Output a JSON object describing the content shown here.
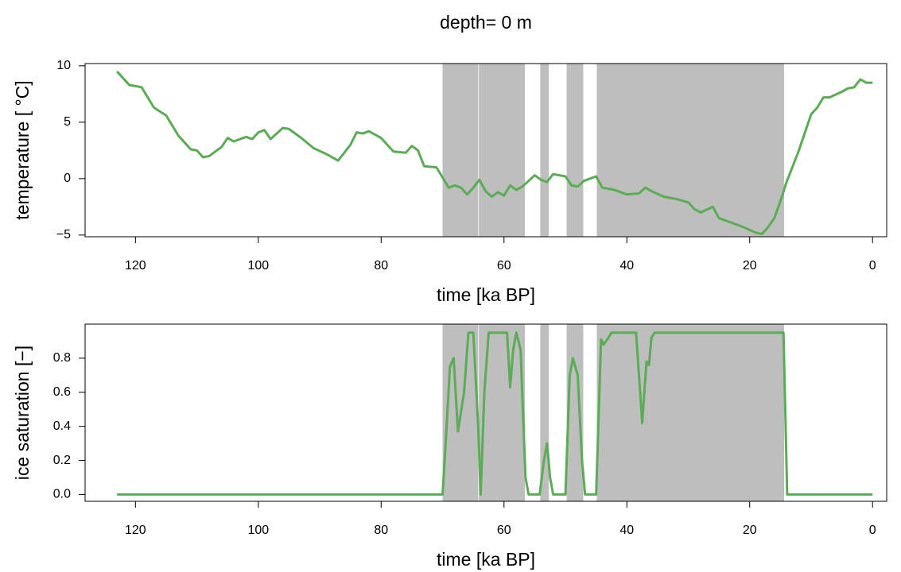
{
  "chart_data": [
    {
      "type": "line",
      "title": "depth= 0 m",
      "xlabel": "time [ka BP]",
      "ylabel": "temperature [ °C]",
      "color": "#5aac55",
      "shade_color": "#bebebe",
      "shading": [
        [
          70,
          64.2
        ],
        [
          64.1,
          56.6
        ],
        [
          54.1,
          52.7
        ],
        [
          49.8,
          47.1
        ],
        [
          44.9,
          14.4
        ]
      ],
      "xlim": [
        128.2,
        -2.3
      ],
      "xticks": [
        120,
        100,
        80,
        60,
        40,
        20,
        0
      ],
      "ylim": [
        -5.15,
        10.2
      ],
      "yticks": [
        {
          "value": -5,
          "label": "−5"
        },
        0,
        5,
        10
      ],
      "x": [
        123,
        121,
        119,
        117,
        115,
        113,
        111,
        110,
        109,
        108,
        106,
        105,
        104,
        102,
        101,
        100,
        99,
        98,
        96,
        95,
        93,
        91,
        89,
        87,
        85,
        84,
        83,
        82,
        80,
        78,
        76,
        75,
        74,
        73,
        71,
        70,
        69,
        68,
        67,
        66,
        65,
        64,
        63,
        62,
        61,
        60,
        59,
        58,
        57,
        56,
        55,
        54,
        53,
        52,
        50,
        49,
        48,
        47,
        45,
        44,
        42,
        40,
        38,
        37,
        36,
        34,
        32,
        30,
        29,
        28,
        26,
        25,
        23,
        21,
        19,
        18,
        17,
        16,
        15,
        14,
        12,
        10,
        9,
        8,
        7,
        5,
        4,
        3,
        2,
        1,
        0
      ],
      "values": [
        9.5,
        8.3,
        8.1,
        6.3,
        5.6,
        3.8,
        2.6,
        2.5,
        1.9,
        2.0,
        2.8,
        3.6,
        3.3,
        3.7,
        3.5,
        4.1,
        4.3,
        3.5,
        4.5,
        4.4,
        3.6,
        2.7,
        2.2,
        1.6,
        3.0,
        4.1,
        4.0,
        4.2,
        3.6,
        2.4,
        2.3,
        2.9,
        2.5,
        1.1,
        1.0,
        0.1,
        -0.8,
        -0.6,
        -0.8,
        -1.4,
        -0.8,
        -0.1,
        -1.1,
        -1.6,
        -1.2,
        -1.5,
        -0.6,
        -1.0,
        -0.7,
        -0.2,
        0.3,
        -0.1,
        -0.3,
        0.4,
        0.2,
        -0.6,
        -0.7,
        -0.2,
        0.2,
        -0.8,
        -1.0,
        -1.4,
        -1.3,
        -0.8,
        -1.1,
        -1.6,
        -1.8,
        -2.1,
        -2.7,
        -3.0,
        -2.5,
        -3.5,
        -3.9,
        -4.3,
        -4.8,
        -4.9,
        -4.3,
        -3.5,
        -2.0,
        -0.3,
        2.5,
        5.7,
        6.3,
        7.2,
        7.2,
        7.7,
        8.0,
        8.1,
        8.8,
        8.5,
        8.5
      ]
    },
    {
      "type": "line",
      "xlabel": "time [ka BP]",
      "ylabel": "ice saturation [−]",
      "color": "#5aac55",
      "shade_color": "#bebebe",
      "shading": [
        [
          70,
          64.2
        ],
        [
          64.1,
          56.6
        ],
        [
          54.1,
          52.7
        ],
        [
          49.8,
          47.1
        ],
        [
          44.9,
          14.4
        ]
      ],
      "xlim": [
        128.2,
        -2.3
      ],
      "xticks": [
        120,
        100,
        80,
        60,
        40,
        20,
        0
      ],
      "ylim": [
        -0.04,
        1.0
      ],
      "yticks": [
        {
          "value": 0,
          "label": "0.0"
        },
        0.2,
        0.4,
        0.6,
        0.8
      ],
      "x": [
        123,
        70,
        69.5,
        68.8,
        68.2,
        67.5,
        66.5,
        65.8,
        65,
        64.2,
        63.8,
        63.2,
        62.5,
        59.5,
        59,
        58.5,
        58,
        57.3,
        56.5,
        56,
        54.2,
        53.5,
        53,
        52.5,
        52,
        50,
        49.3,
        48.8,
        48,
        47.3,
        46.8,
        45,
        44.2,
        43.8,
        43,
        42.5,
        38.5,
        37.5,
        36.8,
        36.4,
        36,
        35.5,
        14.5,
        13.9,
        0
      ],
      "values": [
        0,
        0,
        0.3,
        0.75,
        0.8,
        0.37,
        0.6,
        0.95,
        0.95,
        0.4,
        0,
        0.6,
        0.95,
        0.95,
        0.63,
        0.85,
        0.95,
        0.85,
        0.1,
        0,
        0,
        0.2,
        0.3,
        0.1,
        0,
        0,
        0.7,
        0.8,
        0.7,
        0.2,
        0,
        0,
        0.91,
        0.88,
        0.92,
        0.95,
        0.95,
        0.42,
        0.78,
        0.76,
        0.92,
        0.95,
        0.95,
        0,
        0
      ]
    }
  ]
}
